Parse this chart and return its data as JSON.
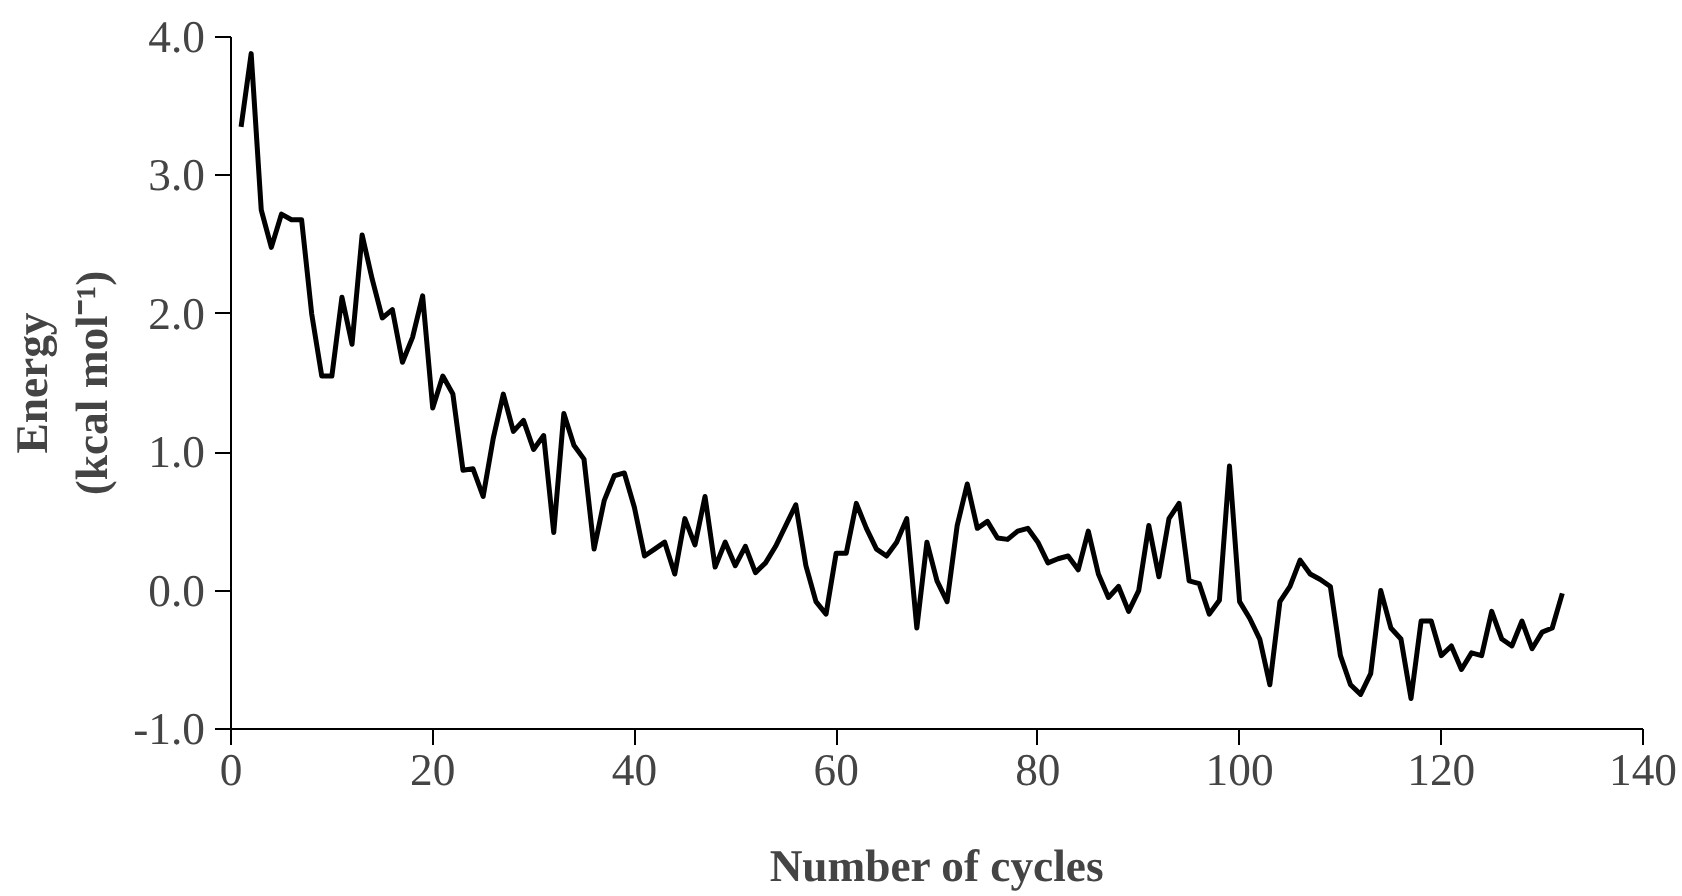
{
  "chart_data": {
    "type": "line",
    "xlabel": "Number of cycles",
    "ylabel": "Energy\n(kcal mol⁻¹)",
    "x": [
      1,
      2,
      3,
      4,
      5,
      6,
      7,
      8,
      9,
      10,
      11,
      12,
      13,
      14,
      15,
      16,
      17,
      18,
      19,
      20,
      21,
      22,
      23,
      24,
      25,
      26,
      27,
      28,
      29,
      30,
      31,
      32,
      33,
      34,
      35,
      36,
      37,
      38,
      39,
      40,
      41,
      42,
      43,
      44,
      45,
      46,
      47,
      48,
      49,
      50,
      51,
      52,
      53,
      54,
      55,
      56,
      57,
      58,
      59,
      60,
      61,
      62,
      63,
      64,
      65,
      66,
      67,
      68,
      69,
      70,
      71,
      72,
      73,
      74,
      75,
      76,
      77,
      78,
      79,
      80,
      81,
      82,
      83,
      84,
      85,
      86,
      87,
      88,
      89,
      90,
      91,
      92,
      93,
      94,
      95,
      96,
      97,
      98,
      99,
      100,
      101,
      102,
      103,
      104,
      105,
      106,
      107,
      108,
      109,
      110,
      111,
      112,
      113,
      114,
      115,
      116,
      117,
      118,
      119,
      120,
      121,
      122,
      123,
      124,
      125,
      126,
      127,
      128,
      129,
      130,
      131,
      132
    ],
    "series": [
      {
        "color": "#000000",
        "values": [
          3.35,
          3.88,
          2.75,
          2.48,
          2.72,
          2.68,
          2.68,
          2.0,
          1.55,
          1.55,
          2.12,
          1.78,
          2.57,
          2.25,
          1.97,
          2.03,
          1.65,
          1.83,
          2.13,
          1.32,
          1.55,
          1.42,
          0.87,
          0.88,
          0.68,
          1.1,
          1.42,
          1.15,
          1.23,
          1.02,
          1.12,
          0.42,
          1.28,
          1.05,
          0.95,
          0.3,
          0.65,
          0.83,
          0.85,
          0.6,
          0.25,
          0.3,
          0.35,
          0.12,
          0.52,
          0.33,
          0.68,
          0.17,
          0.35,
          0.18,
          0.32,
          0.13,
          0.2,
          0.32,
          0.47,
          0.62,
          0.18,
          -0.08,
          -0.17,
          0.27,
          0.27,
          0.63,
          0.45,
          0.3,
          0.25,
          0.35,
          0.52,
          -0.27,
          0.35,
          0.07,
          -0.08,
          0.47,
          0.77,
          0.45,
          0.5,
          0.38,
          0.37,
          0.43,
          0.45,
          0.35,
          0.2,
          0.23,
          0.25,
          0.15,
          0.43,
          0.12,
          -0.05,
          0.03,
          -0.15,
          0.0,
          0.47,
          0.1,
          0.52,
          0.63,
          0.07,
          0.05,
          -0.17,
          -0.07,
          0.9,
          -0.08,
          -0.2,
          -0.35,
          -0.68,
          -0.08,
          0.03,
          0.22,
          0.12,
          0.08,
          0.03,
          -0.47,
          -0.68,
          -0.75,
          -0.6,
          0.0,
          -0.27,
          -0.35,
          -0.78,
          -0.22,
          -0.22,
          -0.47,
          -0.4,
          -0.57,
          -0.45,
          -0.47,
          -0.15,
          -0.35,
          -0.4,
          -0.22,
          -0.42,
          -0.3,
          -0.27,
          -0.02
        ]
      }
    ],
    "xlim": [
      0,
      140
    ],
    "xticks": [
      0,
      20,
      40,
      60,
      80,
      100,
      120,
      140
    ],
    "ylim": [
      -1.0,
      4.0
    ],
    "yticks": [
      {
        "value": -1.0,
        "label": "-1.0"
      },
      {
        "value": 0.0,
        "label": "0.0"
      },
      {
        "value": 1.0,
        "label": "1.0"
      },
      {
        "value": 2.0,
        "label": "2.0"
      },
      {
        "value": 3.0,
        "label": "3.0"
      },
      {
        "value": 4.0,
        "label": "4.0"
      }
    ],
    "grid": false,
    "line_style": "solid",
    "marker": "none"
  }
}
